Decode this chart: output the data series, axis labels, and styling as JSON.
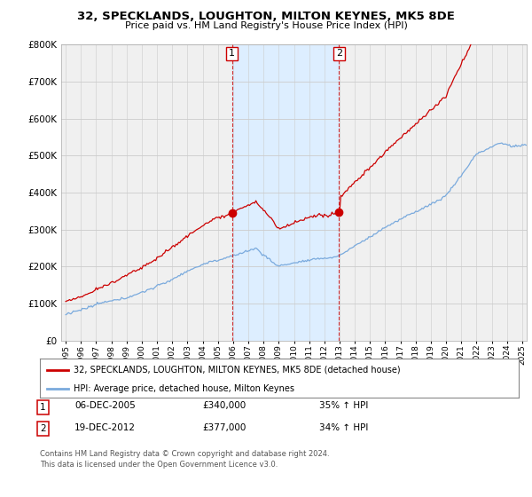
{
  "title": "32, SPECKLANDS, LOUGHTON, MILTON KEYNES, MK5 8DE",
  "subtitle": "Price paid vs. HM Land Registry's House Price Index (HPI)",
  "legend_line1": "32, SPECKLANDS, LOUGHTON, MILTON KEYNES, MK5 8DE (detached house)",
  "legend_line2": "HPI: Average price, detached house, Milton Keynes",
  "transaction1_date": "06-DEC-2005",
  "transaction1_price": "£340,000",
  "transaction1_hpi": "35% ↑ HPI",
  "transaction2_date": "19-DEC-2012",
  "transaction2_price": "£377,000",
  "transaction2_hpi": "34% ↑ HPI",
  "footer": "Contains HM Land Registry data © Crown copyright and database right 2024.\nThis data is licensed under the Open Government Licence v3.0.",
  "hpi_color": "#7aaadd",
  "price_color": "#cc0000",
  "shade_color": "#ddeeff",
  "marker1_x": 2005.92,
  "marker1_y": 340000,
  "marker2_x": 2012.96,
  "marker2_y": 377000,
  "ylim": [
    0,
    800000
  ],
  "yticks": [
    0,
    100000,
    200000,
    300000,
    400000,
    500000,
    600000,
    700000,
    800000
  ],
  "xlim_start": 1995.0,
  "xlim_end": 2025.3,
  "background_color": "#ffffff",
  "plot_bg_color": "#f0f0f0"
}
